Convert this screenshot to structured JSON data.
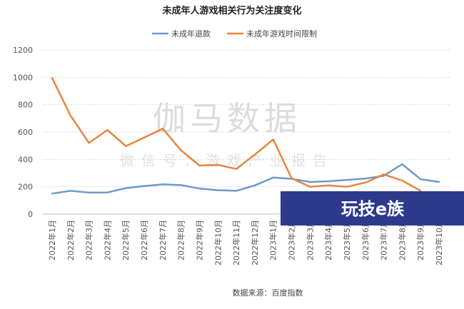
{
  "chart_data": {
    "type": "line",
    "title": "未成年人游戏相关行为关注度变化",
    "categories": [
      "2022年1月",
      "2022年2月",
      "2022年3月",
      "2022年4月",
      "2022年5月",
      "2022年6月",
      "2022年7月",
      "2022年8月",
      "2022年9月",
      "2022年10月",
      "2022年11月",
      "2022年12月",
      "2023年1月",
      "2023年2月",
      "2023年3月",
      "2023年4月",
      "2023年5月",
      "2023年6月",
      "2023年7月",
      "2023年8月",
      "2023年9月",
      "2023年10月"
    ],
    "series": [
      {
        "name": "未成年退款",
        "color": "#6c9bc7",
        "values": [
          150,
          170,
          157,
          158,
          190,
          205,
          217,
          212,
          187,
          175,
          170,
          210,
          267,
          258,
          235,
          240,
          250,
          260,
          280,
          365,
          255,
          235
        ]
      },
      {
        "name": "未成年游戏时间限制",
        "color": "#e8853d",
        "values": [
          995,
          720,
          520,
          615,
          497,
          560,
          625,
          465,
          355,
          360,
          330,
          435,
          545,
          262,
          200,
          210,
          200,
          230,
          290,
          245,
          170,
          null
        ]
      }
    ],
    "ylim": [
      0,
      1200
    ],
    "yticks": [
      0,
      200,
      400,
      600,
      800,
      1000,
      1200
    ],
    "grid": true,
    "legend_position": "top-center"
  },
  "watermark": {
    "main": "伽马数据",
    "sub": "微信号：游戏产业报告"
  },
  "source_note": "数据来源：百度指数",
  "banner": {
    "text": "玩技e族",
    "color": "#2e3a8c"
  }
}
